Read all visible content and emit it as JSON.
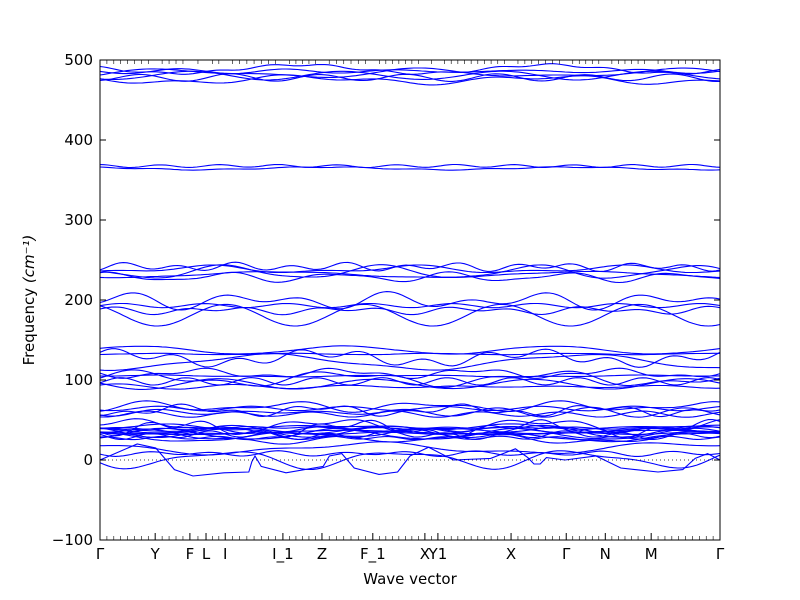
{
  "chart_data": {
    "type": "line",
    "title": "",
    "xlabel": "Wave vector",
    "ylabel": "Frequency ",
    "ylabel_unit": "(cm⁻¹)",
    "ylim": [
      -100,
      500
    ],
    "yticks": [
      -100,
      0,
      100,
      200,
      300,
      400,
      500
    ],
    "xlim": [
      0,
      1
    ],
    "xticks": [
      {
        "label": "Γ",
        "x": 0.0
      },
      {
        "label": "Y",
        "x": 0.089
      },
      {
        "label": "F",
        "x": 0.145
      },
      {
        "label": "L",
        "x": 0.171
      },
      {
        "label": "I",
        "x": 0.202
      },
      {
        "label": "I_1",
        "x": 0.295
      },
      {
        "label": "Z",
        "x": 0.358
      },
      {
        "label": "F_1",
        "x": 0.44
      },
      {
        "label": "X",
        "x": 0.524
      },
      {
        "label": "Y1",
        "x": 0.545
      },
      {
        "label": "X",
        "x": 0.663
      },
      {
        "label": "Γ",
        "x": 0.752
      },
      {
        "label": "N",
        "x": 0.815
      },
      {
        "label": "M",
        "x": 0.889
      },
      {
        "label": "Γ",
        "x": 1.0
      }
    ],
    "grid": false,
    "zero_line": true,
    "series_color": "#0000ff",
    "band_groups": [
      {
        "base": 482,
        "count": 6,
        "spread": 8
      },
      {
        "base": 366,
        "count": 2,
        "spread": 3
      },
      {
        "base": 235,
        "count": 5,
        "spread": 8
      },
      {
        "base": 190,
        "count": 4,
        "spread": 12
      },
      {
        "base": 130,
        "count": 4,
        "spread": 10
      },
      {
        "base": 100,
        "count": 6,
        "spread": 10
      },
      {
        "base": 62,
        "count": 5,
        "spread": 6
      },
      {
        "base": 35,
        "count": 14,
        "spread": 8
      },
      {
        "base": 8,
        "count": 3,
        "spread": 10
      }
    ]
  }
}
